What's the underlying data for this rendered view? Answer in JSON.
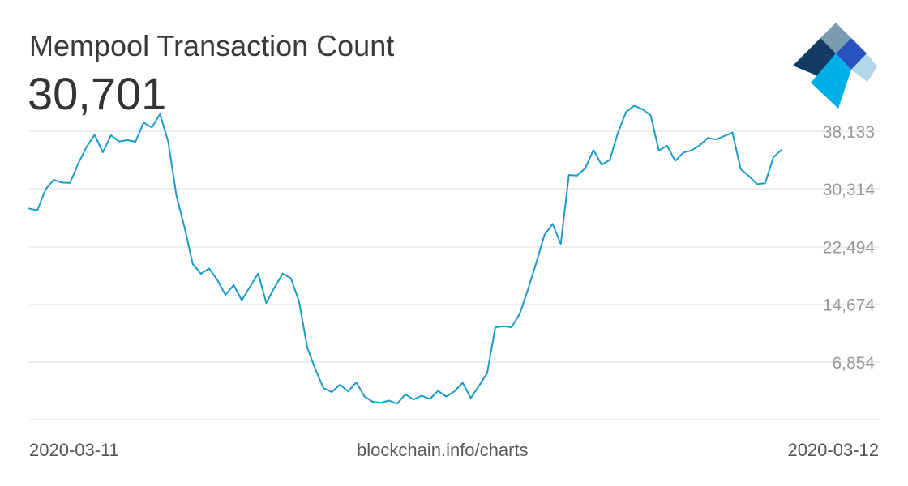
{
  "header": {
    "title": "Mempool Transaction Count",
    "current_value": "30,701"
  },
  "footer": {
    "start_date": "2020-03-11",
    "source": "blockchain.info/charts",
    "end_date": "2020-03-12"
  },
  "logo": {
    "icon": "blockchain-logo-icon",
    "colors": [
      "#7b9cb0",
      "#123a63",
      "#2a52be",
      "#00afe6",
      "#b4d6ea"
    ]
  },
  "colors": {
    "line": "#1a9bc9",
    "grid": "#dddddd",
    "tick_label": "#999999"
  },
  "chart_data": {
    "type": "line",
    "title": "Mempool Transaction Count",
    "xlabel": "",
    "ylabel": "",
    "x_range": [
      "2020-03-11",
      "2020-03-12"
    ],
    "ylim": [
      -965,
      38133
    ],
    "y_ticks": [
      6854,
      14674,
      22494,
      30314,
      38133
    ],
    "y_tick_labels": [
      "6,854",
      "14,674",
      "22,494",
      "30,314",
      "38,133"
    ],
    "y_axis_position": "right",
    "grid": true,
    "legend": "none",
    "series": [
      {
        "values": [
          27650,
          27400,
          30250,
          31550,
          31170,
          31120,
          33750,
          35970,
          37650,
          35270,
          37580,
          36740,
          36920,
          36700,
          39310,
          38650,
          40460,
          36710,
          29400,
          25070,
          20140,
          18800,
          19520,
          17980,
          15950,
          17270,
          15220,
          17040,
          18840,
          14850,
          16950,
          18840,
          18200,
          15050,
          8800,
          5860,
          3300,
          2770,
          3770,
          2870,
          4090,
          2170,
          1440,
          1310,
          1620,
          1200,
          2460,
          1760,
          2280,
          1840,
          2920,
          2170,
          2860,
          4040,
          1960,
          3610,
          5330,
          11550,
          11700,
          11550,
          13400,
          16700,
          20250,
          24050,
          25580,
          22840,
          32190,
          32110,
          33100,
          35580,
          33590,
          34250,
          37960,
          40760,
          41580,
          41110,
          40290,
          35520,
          36180,
          34110,
          35240,
          35530,
          36230,
          37220,
          37010,
          37490,
          37940,
          33020,
          32050,
          30970,
          31070,
          34590,
          35630
        ]
      }
    ]
  }
}
